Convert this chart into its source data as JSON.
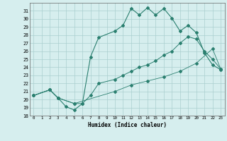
{
  "xlabel": "Humidex (Indice chaleur)",
  "background_color": "#d6eeee",
  "grid_color": "#aacfcf",
  "line_color": "#2a7f6f",
  "xlim": [
    -0.5,
    23.5
  ],
  "ylim": [
    18,
    32
  ],
  "xticks": [
    0,
    1,
    2,
    3,
    4,
    5,
    6,
    7,
    8,
    9,
    10,
    11,
    12,
    13,
    14,
    15,
    16,
    17,
    18,
    19,
    20,
    21,
    22,
    23
  ],
  "yticks": [
    18,
    19,
    20,
    21,
    22,
    23,
    24,
    25,
    26,
    27,
    28,
    29,
    30,
    31
  ],
  "line1_x": [
    0,
    2,
    3,
    4,
    5,
    6,
    7,
    8,
    10,
    11,
    12,
    13,
    14,
    15,
    16,
    17,
    18,
    19,
    20,
    21,
    22,
    23
  ],
  "line1_y": [
    20.5,
    21.2,
    20.2,
    19.1,
    18.7,
    19.5,
    25.3,
    27.7,
    28.5,
    29.2,
    31.3,
    30.5,
    31.4,
    30.5,
    31.3,
    30.1,
    28.5,
    29.2,
    28.3,
    25.8,
    24.3,
    23.7
  ],
  "line2_x": [
    0,
    2,
    3,
    5,
    6,
    7,
    8,
    10,
    11,
    12,
    13,
    14,
    15,
    16,
    17,
    18,
    19,
    20,
    21,
    22,
    23
  ],
  "line2_y": [
    20.5,
    21.2,
    20.2,
    19.5,
    19.5,
    20.5,
    22.0,
    22.5,
    23.0,
    23.5,
    24.0,
    24.3,
    24.8,
    25.5,
    26.0,
    27.0,
    27.8,
    27.5,
    26.0,
    25.0,
    23.8
  ],
  "line3_x": [
    0,
    2,
    3,
    5,
    10,
    12,
    14,
    16,
    18,
    20,
    22,
    23
  ],
  "line3_y": [
    20.5,
    21.2,
    20.2,
    19.5,
    21.0,
    21.8,
    22.3,
    22.8,
    23.5,
    24.5,
    26.3,
    23.8
  ]
}
